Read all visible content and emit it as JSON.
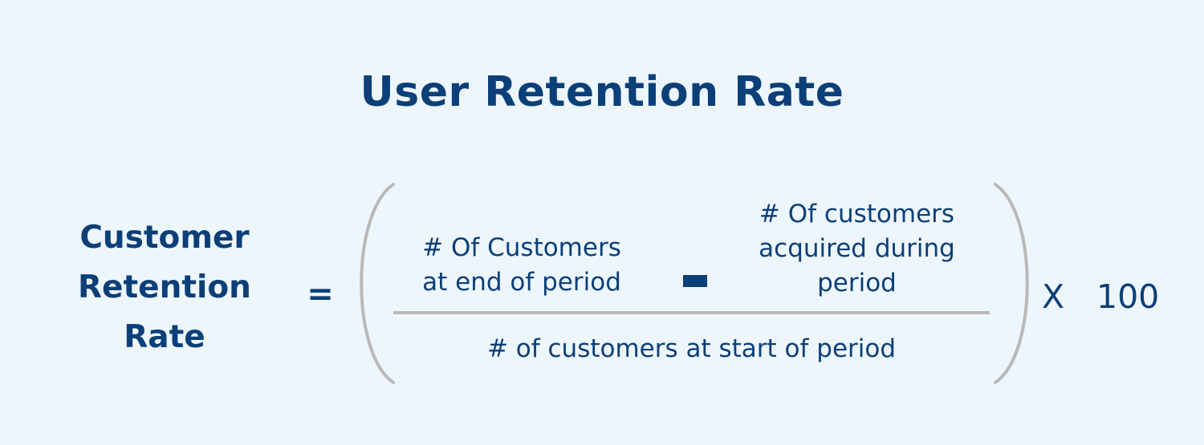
{
  "title": "User Retention Rate",
  "lhs": {
    "lines": [
      "Customer",
      "Retention",
      "Rate"
    ]
  },
  "equals_sign": "=",
  "numerator": {
    "term_a": {
      "lines": [
        "# Of Customers",
        "at end of period"
      ]
    },
    "operator": "minus",
    "term_b": {
      "lines": [
        "# Of customers",
        "acquired during",
        "period"
      ]
    }
  },
  "denominator": "# of customers at start of period",
  "multiplier": {
    "sign": "X",
    "value": "100"
  },
  "colors": {
    "background": "#eef6fd",
    "text": "#0b3f78",
    "bracket_and_bar": "#b9b9b9"
  }
}
